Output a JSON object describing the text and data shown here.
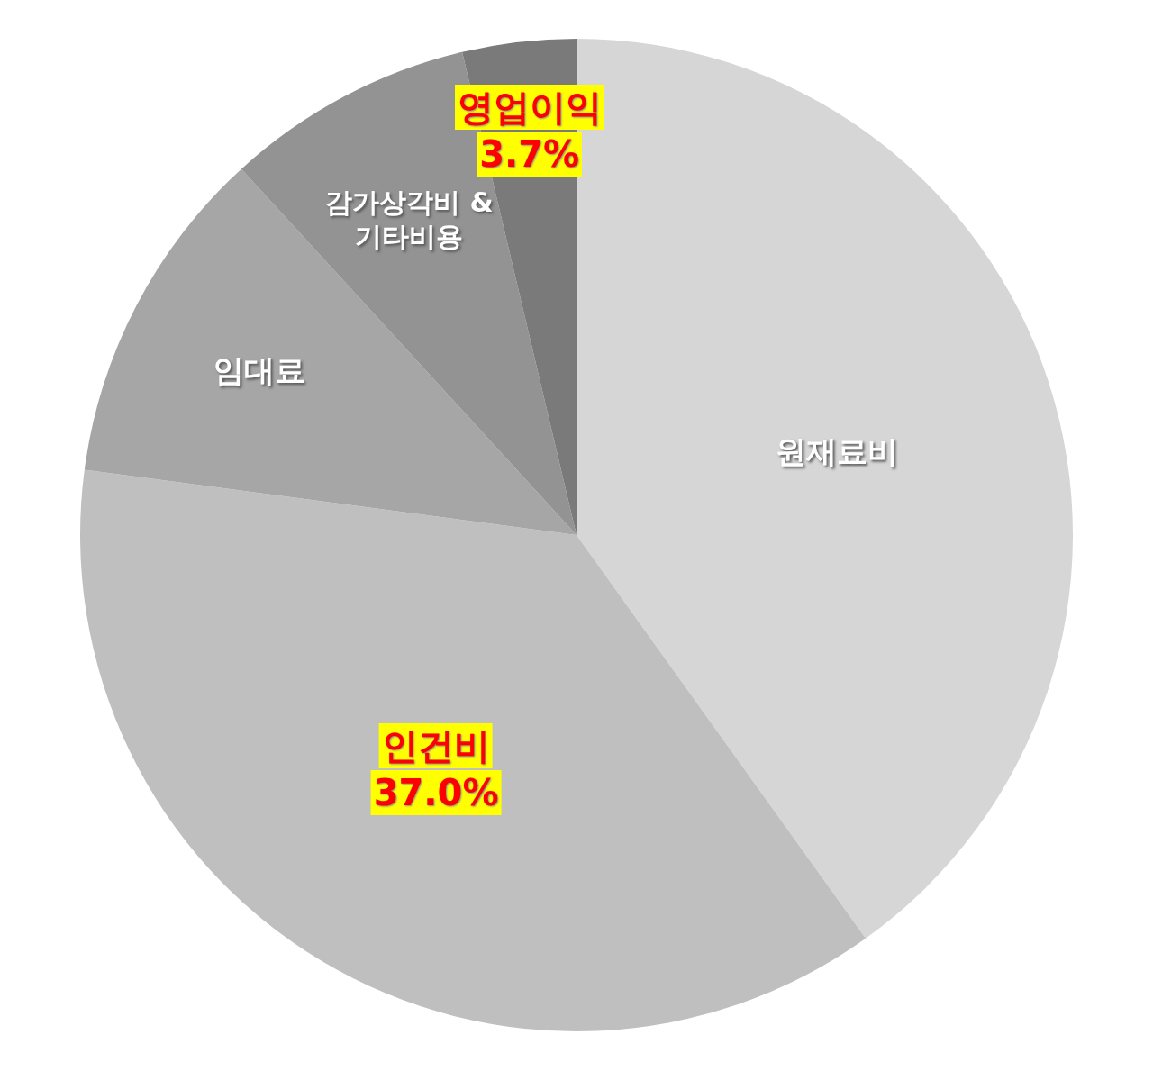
{
  "chart_data": {
    "type": "pie",
    "categories": [
      "원재료비",
      "인건비",
      "임대료",
      "감가상각비 & 기타비용",
      "영업이익"
    ],
    "values": [
      40.1,
      37.0,
      11.1,
      8.1,
      3.7
    ],
    "colors": [
      "#d6d6d6",
      "#bfbfbf",
      "#a6a6a6",
      "#939393",
      "#7a7a7a"
    ],
    "value_labels": [
      null,
      "37.0%",
      null,
      null,
      "3.7%"
    ]
  }
}
